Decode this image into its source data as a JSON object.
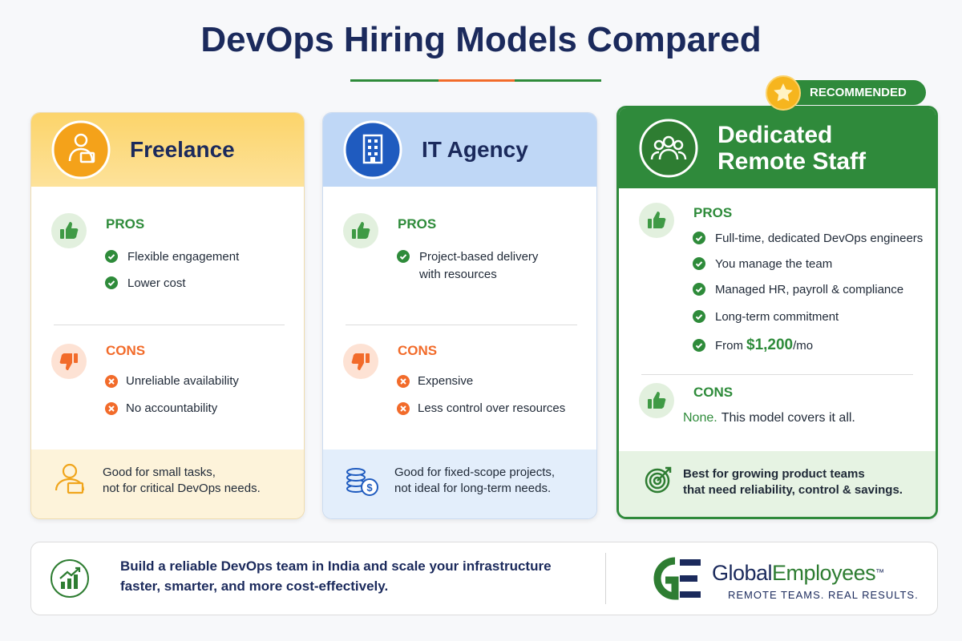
{
  "header": {
    "title": "DevOps Hiring Models Compared"
  },
  "cards": [
    {
      "title": [
        "Freelance"
      ],
      "pros_label": "PROS",
      "pros": [
        "Flexible engagement",
        "Lower cost"
      ],
      "cons_label": "CONS",
      "cons": [
        "Unreliable availability",
        "No accountability"
      ],
      "note": [
        "Good for small tasks,",
        "not for critical DevOps needs."
      ]
    },
    {
      "title": [
        "IT Agency"
      ],
      "pros_label": "PROS",
      "pros": [
        "Project-based delivery with resources"
      ],
      "cons_label": "CONS",
      "cons": [
        "Expensive",
        "Less control over resources"
      ],
      "note": [
        "Good for fixed-scope projects,",
        "not ideal for long-term needs."
      ]
    },
    {
      "badge": "RECOMMENDED",
      "title": [
        "Dedicated",
        "Remote Staff"
      ],
      "pros_label": "PROS",
      "pros": [
        "Full-time, dedicated DevOps engineers",
        "You manage the team",
        "Managed HR, payroll & compliance",
        "Long-term commitment"
      ],
      "price": {
        "prefix": "From",
        "amount": "$1,200",
        "suffix": "/mo"
      },
      "cons_label": "CONS",
      "cons_note": {
        "lead": "None.",
        "text": "This model covers it all."
      },
      "note": [
        "Best for growing product teams",
        "that need reliability, control & savings."
      ]
    }
  ],
  "banner": {
    "lines": [
      "Build a reliable DevOps team in India and scale your infrastructure",
      "faster, smarter, and more cost-effectively."
    ],
    "brand": {
      "name_a": "Global",
      "name_b": "Employees",
      "tm": "™",
      "tagline": "REMOTE TEAMS. REAL RESULTS."
    }
  }
}
